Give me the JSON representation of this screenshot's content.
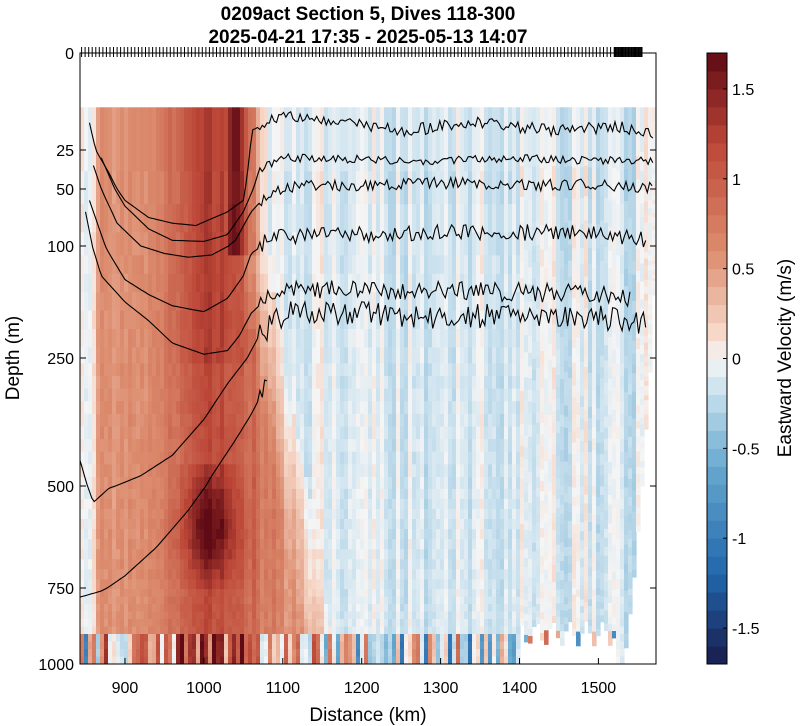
{
  "chart_data": {
    "type": "heatmap",
    "title_line1": "0209act Section 5, Dives 118-300",
    "title_line2": "2025-04-21 17:35 - 2025-05-13 14:07",
    "xlabel": "Distance (km)",
    "ylabel": "Depth (m)",
    "colorbar_label": "Eastward Velocity (m/s)",
    "x_ticks": [
      900,
      1000,
      1100,
      1200,
      1300,
      1400,
      1500
    ],
    "y_ticks": [
      0,
      25,
      50,
      100,
      250,
      500,
      750,
      1000
    ],
    "colorbar_ticks": [
      1.5,
      1,
      0.5,
      0,
      -0.5,
      -1,
      -1.5
    ],
    "xlim": [
      843,
      1573
    ],
    "ylim": [
      0,
      1000
    ],
    "clim": [
      -1.7,
      1.7
    ],
    "colormap": "diverging blue-white-red",
    "dives_start": 118,
    "dives_end": 300,
    "data_top_depth": 14,
    "jet_core": {
      "x": [
        870,
        1060
      ],
      "max_velocity": 1.6
    },
    "contours": [
      {
        "x": [
          855,
          880,
          900,
          930,
          960,
          990,
          1010,
          1030,
          1050,
          1060,
          1100,
          1150,
          1250,
          1350,
          1450,
          1520,
          1560,
          1570
        ],
        "depth": [
          18,
          40,
          60,
          75,
          80,
          82,
          76,
          70,
          60,
          20,
          16,
          17,
          20,
          18,
          20,
          19,
          20,
          22
        ]
      },
      {
        "x": [
          870,
          900,
          930,
          960,
          1000,
          1030,
          1050,
          1070,
          1100,
          1200,
          1300,
          1400,
          1500,
          1560,
          1570
        ],
        "depth": [
          30,
          65,
          85,
          95,
          96,
          90,
          70,
          38,
          30,
          31,
          32,
          30,
          32,
          31,
          34
        ]
      },
      {
        "x": [
          860,
          890,
          920,
          950,
          980,
          1010,
          1040,
          1060,
          1080,
          1120,
          1200,
          1300,
          1400,
          1500,
          1570
        ],
        "depth": [
          35,
          80,
          100,
          110,
          115,
          112,
          95,
          70,
          55,
          48,
          48,
          46,
          48,
          47,
          50
        ]
      },
      {
        "x": [
          855,
          880,
          900,
          930,
          960,
          1000,
          1030,
          1050,
          1060,
          1080,
          1120,
          1200,
          1300,
          1400,
          1500,
          1560
        ],
        "depth": [
          60,
          110,
          145,
          165,
          180,
          188,
          170,
          140,
          110,
          95,
          90,
          90,
          88,
          88,
          90,
          95
        ]
      },
      {
        "x": [
          850,
          870,
          900,
          930,
          960,
          1000,
          1030,
          1045,
          1060,
          1080,
          1100,
          1150,
          1200,
          1300,
          1400,
          1500,
          1540
        ],
        "depth": [
          70,
          140,
          175,
          200,
          230,
          245,
          240,
          220,
          190,
          170,
          160,
          158,
          160,
          158,
          162,
          165,
          170
        ]
      },
      {
        "x": [
          843,
          860,
          880,
          920,
          960,
          1000,
          1030,
          1050,
          1070,
          1090,
          1110,
          1150,
          1200,
          1300,
          1400,
          1500,
          1560
        ],
        "depth": [
          450,
          540,
          505,
          480,
          440,
          370,
          300,
          260,
          220,
          200,
          190,
          190,
          190,
          195,
          193,
          195,
          205
        ]
      },
      {
        "x": [
          843,
          870,
          900,
          940,
          980,
          1010,
          1040,
          1060,
          1080
        ],
        "depth": [
          780,
          760,
          720,
          650,
          560,
          480,
          410,
          360,
          300
        ]
      }
    ]
  }
}
